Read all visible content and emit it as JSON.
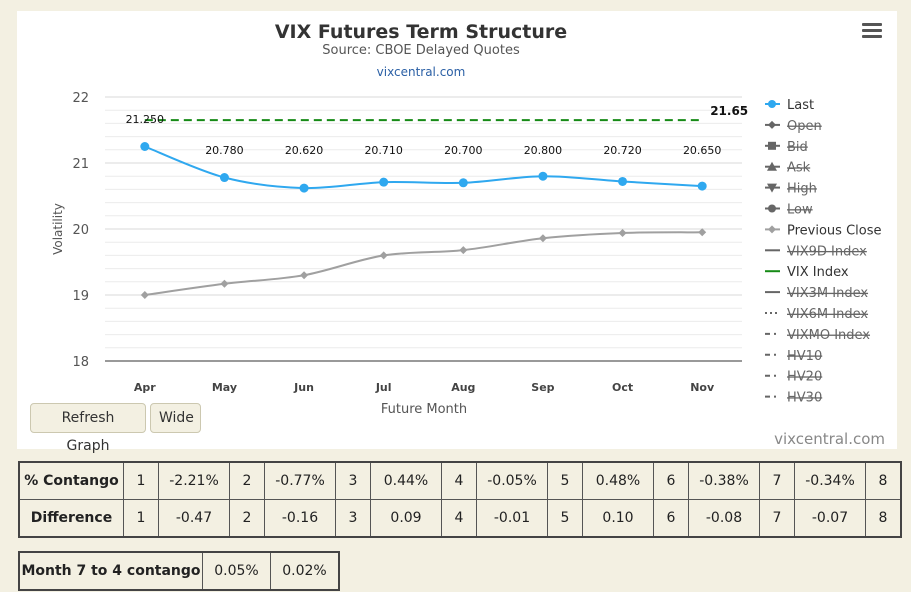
{
  "chart_data": {
    "type": "line",
    "title": "VIX Futures Term Structure",
    "subtitle": "Source: CBOE Delayed Quotes",
    "link": "vixcentral.com",
    "xlabel": "Future Month",
    "ylabel": "Volatility",
    "ylim": [
      18,
      22
    ],
    "yticks": [
      18,
      19,
      20,
      21,
      22
    ],
    "categories": [
      "Apr",
      "May",
      "Jun",
      "Jul",
      "Aug",
      "Sep",
      "Oct",
      "Nov"
    ],
    "grid": true,
    "legend_position": "right",
    "series": [
      {
        "name": "Last",
        "values": [
          21.25,
          20.78,
          20.62,
          20.71,
          20.7,
          20.8,
          20.72,
          20.65
        ],
        "labels": [
          "21.250",
          "20.780",
          "20.620",
          "20.710",
          "20.700",
          "20.800",
          "20.720",
          "20.650"
        ],
        "color": "#2fa8ef",
        "marker": "circle"
      },
      {
        "name": "Previous Close",
        "values": [
          19.0,
          19.17,
          19.3,
          19.6,
          19.68,
          19.86,
          19.94,
          19.95
        ],
        "color": "#a0a0a0",
        "marker": "diamond"
      },
      {
        "name": "VIX Index",
        "value": 21.65,
        "label": "21.65",
        "color": "#168a16",
        "style": "dashed"
      }
    ],
    "legend": [
      {
        "name": "Last",
        "active": true,
        "symbol": "circle",
        "color": "#2fa8ef"
      },
      {
        "name": "Open",
        "active": false,
        "symbol": "diamond",
        "color": "#666"
      },
      {
        "name": "Bid",
        "active": false,
        "symbol": "square",
        "color": "#666"
      },
      {
        "name": "Ask",
        "active": false,
        "symbol": "triangle",
        "color": "#666"
      },
      {
        "name": "High",
        "active": false,
        "symbol": "triangle-down",
        "color": "#666"
      },
      {
        "name": "Low",
        "active": false,
        "symbol": "circle",
        "color": "#666"
      },
      {
        "name": "Previous Close",
        "active": true,
        "symbol": "diamond",
        "color": "#a0a0a0"
      },
      {
        "name": "VIX9D Index",
        "active": false,
        "symbol": "line",
        "color": "#666"
      },
      {
        "name": "VIX Index",
        "active": true,
        "symbol": "line",
        "color": "#168a16"
      },
      {
        "name": "VIX3M Index",
        "active": false,
        "symbol": "line",
        "color": "#666"
      },
      {
        "name": "VIX6M Index",
        "active": false,
        "symbol": "dotted",
        "color": "#666"
      },
      {
        "name": "VIXMO Index",
        "active": false,
        "symbol": "dashdot",
        "color": "#666"
      },
      {
        "name": "HV10",
        "active": false,
        "symbol": "dashdot",
        "color": "#666"
      },
      {
        "name": "HV20",
        "active": false,
        "symbol": "dashdot",
        "color": "#666"
      },
      {
        "name": "HV30",
        "active": false,
        "symbol": "dashdot",
        "color": "#666"
      }
    ]
  },
  "buttons": {
    "refresh": "Refresh Graph",
    "wide": "Wide"
  },
  "brand": "vixcentral.com",
  "contango_table": {
    "rows": [
      {
        "header": "% Contango",
        "cells": [
          "1",
          "-2.21%",
          "2",
          "-0.77%",
          "3",
          "0.44%",
          "4",
          "-0.05%",
          "5",
          "0.48%",
          "6",
          "-0.38%",
          "7",
          "-0.34%",
          "8"
        ]
      },
      {
        "header": "Difference",
        "cells": [
          "1",
          "-0.47",
          "2",
          "-0.16",
          "3",
          "0.09",
          "4",
          "-0.01",
          "5",
          "0.10",
          "6",
          "-0.08",
          "7",
          "-0.07",
          "8"
        ]
      }
    ]
  },
  "month7_4": {
    "header": "Month 7 to 4 contango",
    "values": [
      "0.05%",
      "0.02%"
    ]
  }
}
